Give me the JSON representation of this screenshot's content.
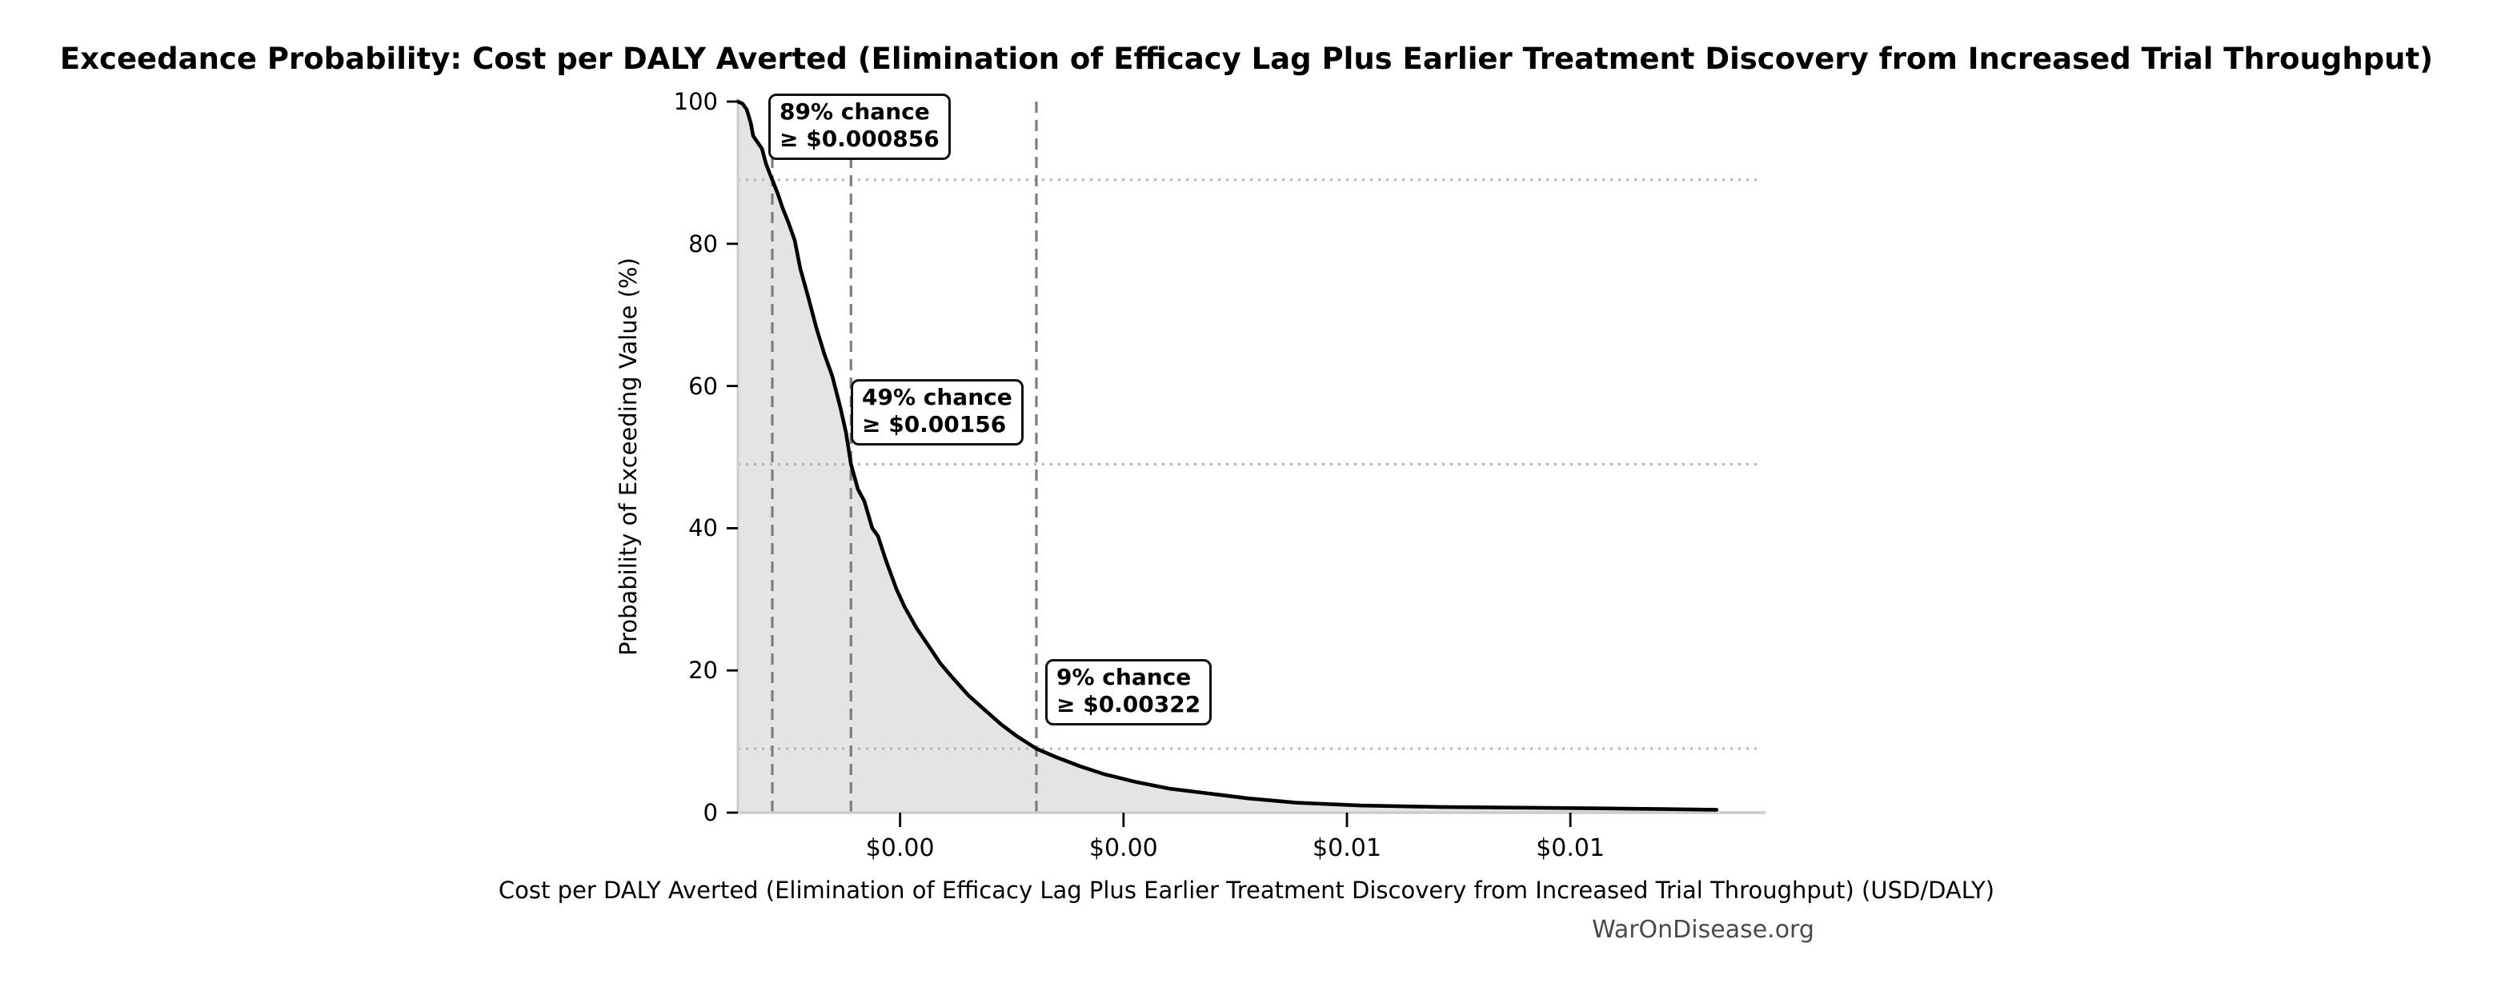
{
  "page": {
    "title": "Exceedance Probability: Cost per DALY Averted (Elimination of Efficacy Lag Plus Earlier Treatment Discovery from Increased Trial Throughput)",
    "watermark": "WarOnDisease.org"
  },
  "chart_data": {
    "type": "line",
    "title": "Exceedance Probability: Cost per DALY Averted (Elimination of Efficacy Lag Plus Earlier Treatment Discovery from Increased Trial Throughput)",
    "xlabel": "Cost per DALY Averted (Elimination of Efficacy Lag Plus Earlier Treatment Discovery from Increased Trial Throughput) (USD/DALY)",
    "ylabel": "Probability of Exceeding Value (%)",
    "xlim": [
      0.000548,
      0.009747
    ],
    "ylim": [
      0,
      100
    ],
    "xticks": {
      "values": [
        0.002,
        0.004,
        0.006,
        0.008
      ],
      "labels": [
        "$0.00",
        "$0.00",
        "$0.01",
        "$0.01"
      ]
    },
    "yticks": {
      "values": [
        0,
        20,
        40,
        60,
        80,
        100
      ],
      "labels": [
        "0",
        "20",
        "40",
        "60",
        "80",
        "100"
      ]
    },
    "legend": "none",
    "grid": {
      "h_dotted_at_percent": [
        89,
        49,
        9
      ],
      "v_dashed_at_value": [
        0.000856,
        0.00156,
        0.00322
      ]
    },
    "fill_under_curve": true,
    "series": [
      {
        "name": "exceedance-curve",
        "x": [
          0.000548,
          0.00059,
          0.000627,
          0.000663,
          0.000684,
          0.000727,
          0.000763,
          0.000799,
          0.000835,
          0.000856,
          0.000906,
          0.000949,
          0.001,
          0.001057,
          0.001107,
          0.001178,
          0.00125,
          0.001322,
          0.001393,
          0.001465,
          0.001515,
          0.00156,
          0.001622,
          0.00168,
          0.001751,
          0.001802,
          0.001873,
          0.001966,
          0.002038,
          0.002146,
          0.002253,
          0.00236,
          0.002468,
          0.002611,
          0.002754,
          0.002898,
          0.003041,
          0.00322,
          0.003399,
          0.003614,
          0.003829,
          0.004115,
          0.004402,
          0.00476,
          0.005118,
          0.005548,
          0.006121,
          0.006837,
          0.007554,
          0.00827,
          0.008843,
          0.009309
        ],
        "y": [
          100,
          99.7,
          98.9,
          97.0,
          95.2,
          94.2,
          93.4,
          91.3,
          89.8,
          89.0,
          87.0,
          85.0,
          83.0,
          80.5,
          76.5,
          72.5,
          68.2,
          64.5,
          61.4,
          57.0,
          53.5,
          49.0,
          45.5,
          43.8,
          40.0,
          38.9,
          35.5,
          31.5,
          29.0,
          26.0,
          23.5,
          21.0,
          19.0,
          16.5,
          14.5,
          12.5,
          10.8,
          9.0,
          7.8,
          6.5,
          5.4,
          4.3,
          3.4,
          2.7,
          2.0,
          1.4,
          1.0,
          0.8,
          0.7,
          0.6,
          0.5,
          0.4
        ]
      }
    ],
    "annotations": [
      {
        "line1": "89% chance",
        "line2": "≥ $0.000856",
        "probability_percent": 89,
        "value_usd_per_daly": 0.000856
      },
      {
        "line1": "49% chance",
        "line2": "≥ $0.00156",
        "probability_percent": 49,
        "value_usd_per_daly": 0.00156
      },
      {
        "line1": "9% chance",
        "line2": "≥ $0.00322",
        "probability_percent": 9,
        "value_usd_per_daly": 0.00322
      }
    ],
    "colors": {
      "curve": "#000000",
      "fill": "#e4e4e4",
      "dashed_line": "#7d7d7d",
      "dotted_line": "#b3b3b3",
      "spine": "#cccccc",
      "tick": "#000000",
      "watermark": "#4a4a4a",
      "annotation_border": "#111111",
      "annotation_bg": "#ffffff"
    }
  }
}
